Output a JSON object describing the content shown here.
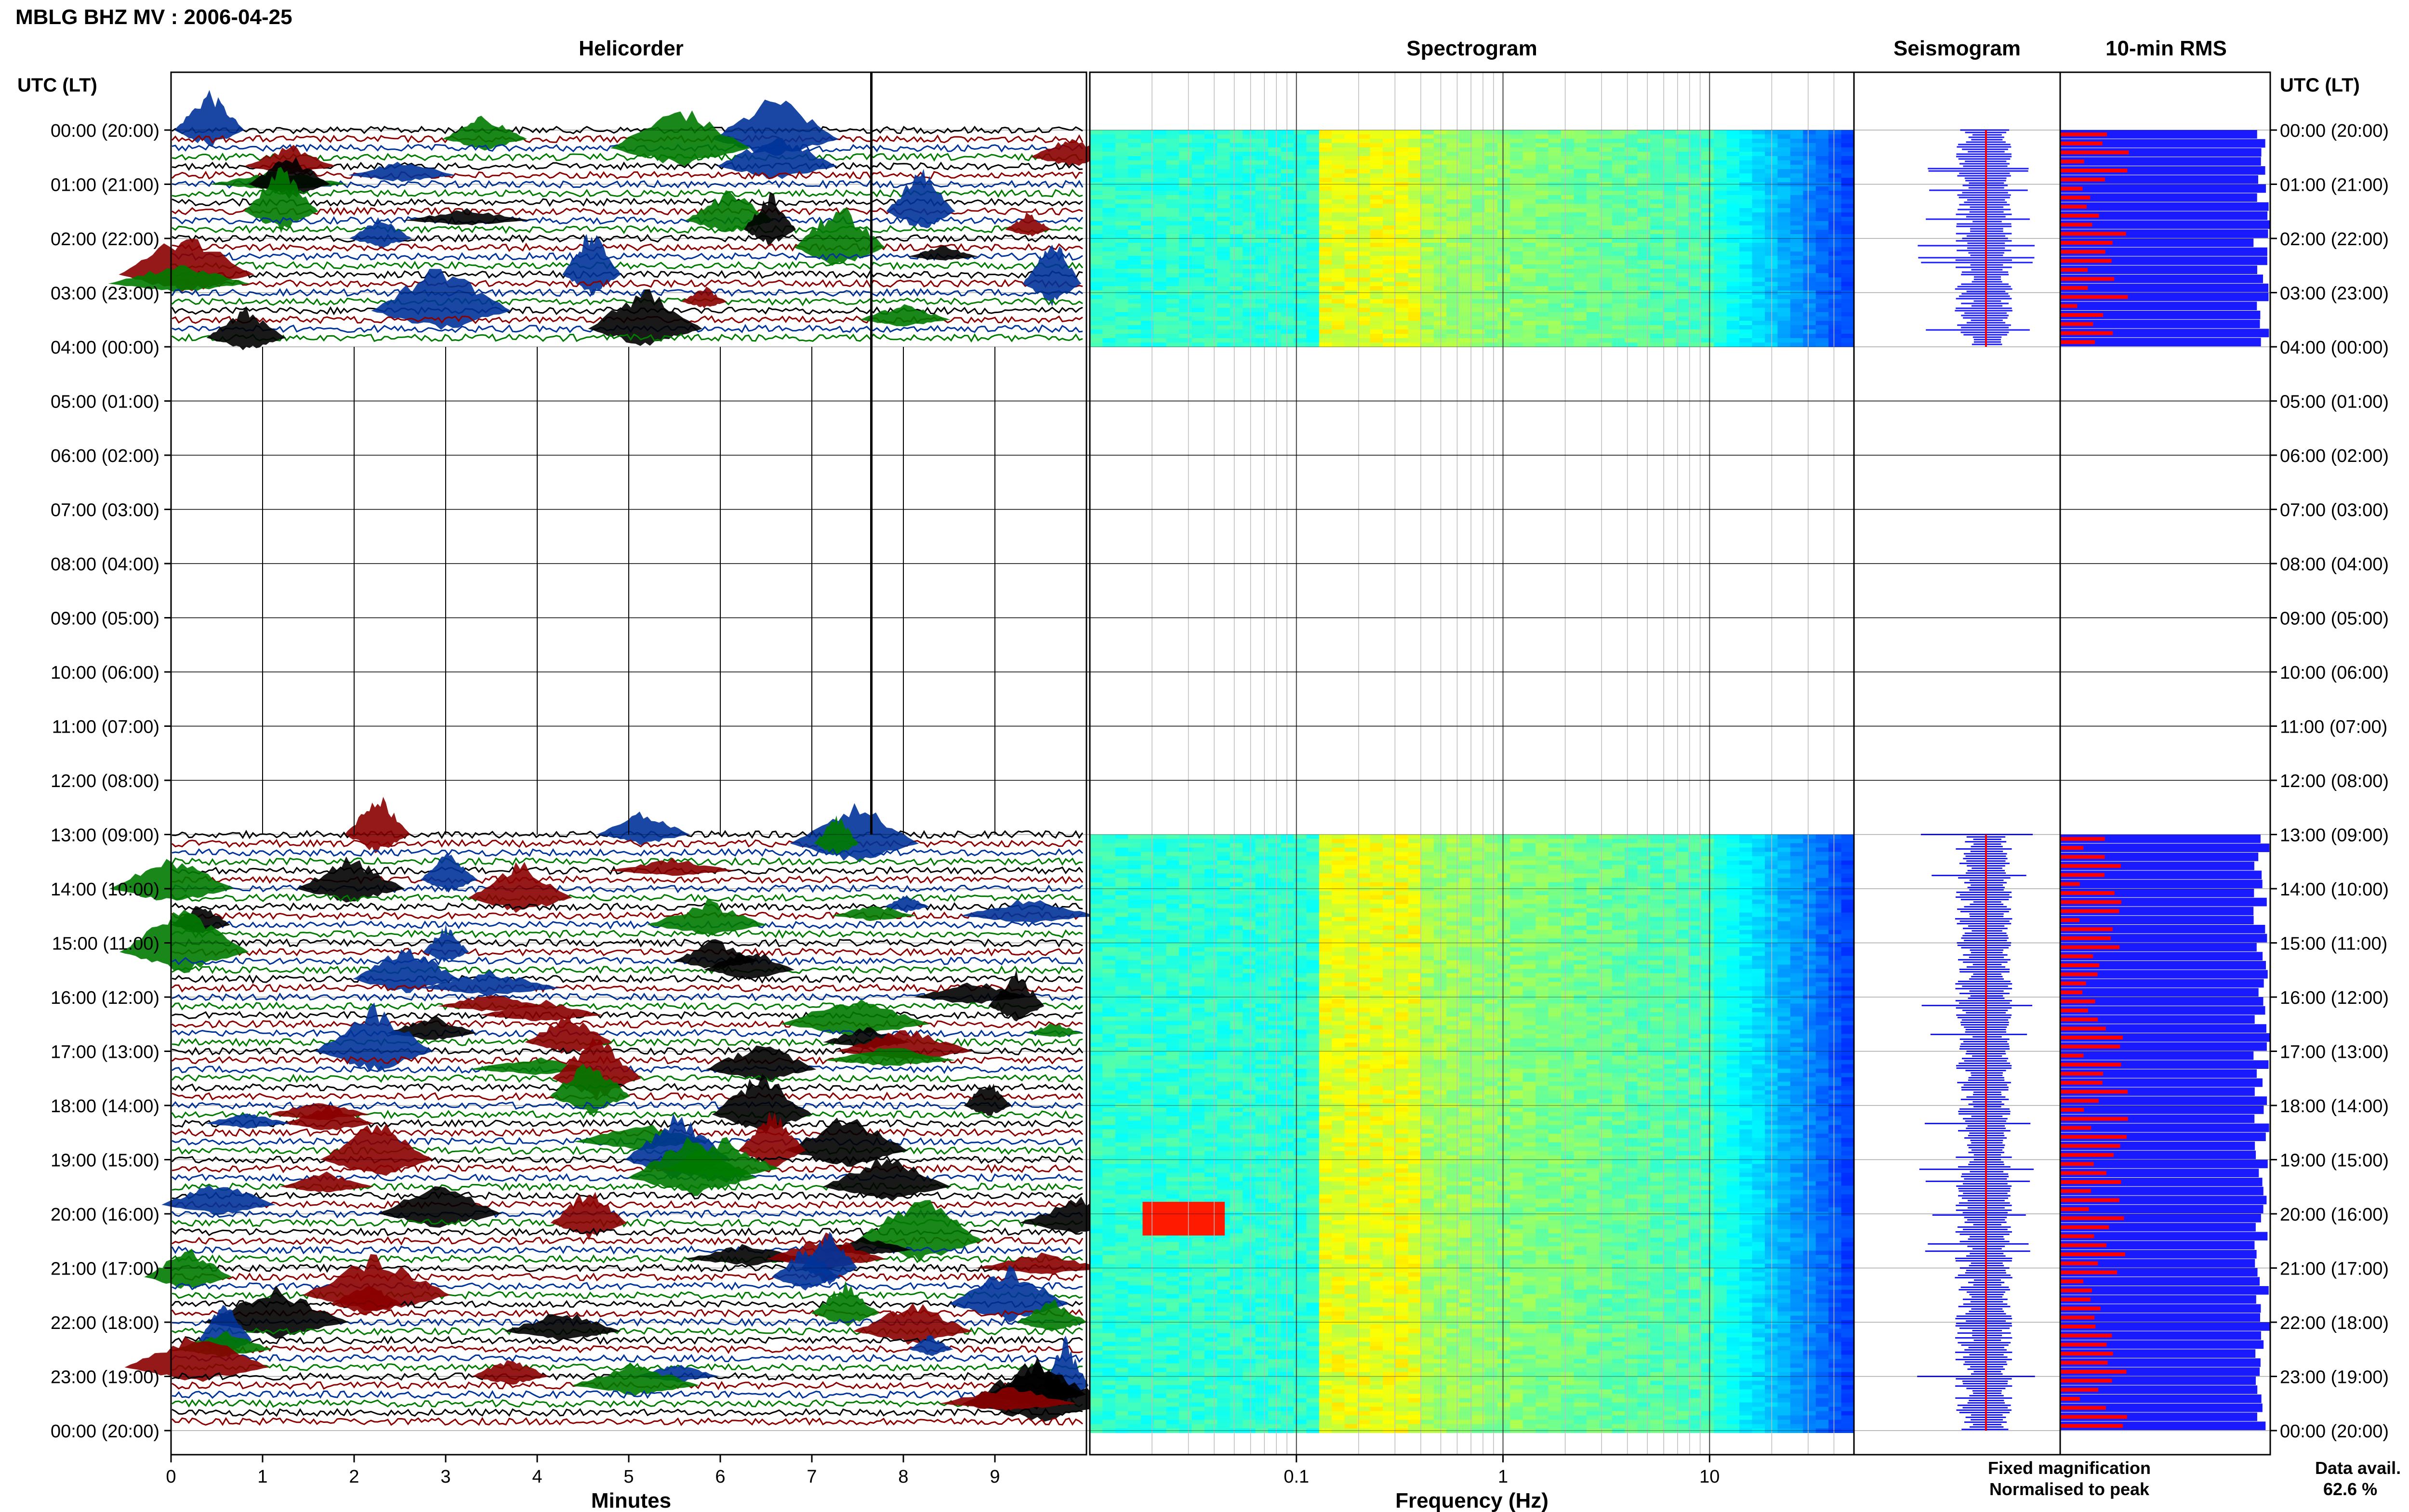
{
  "figure": {
    "title": "MBLG BHZ MV : 2006-04-25",
    "utc_header": "UTC (LT)",
    "data_avail_label": "Data avail.",
    "data_avail_value": "62.6 %",
    "legend_fixed": "Fixed magnification",
    "legend_norm": "Normalised to peak"
  },
  "colors": {
    "trace_cycle": [
      "#000000",
      "#8b0000",
      "#003399",
      "#007a00"
    ],
    "fixed_blue": "#1a1aff",
    "peak_red": "#ff0000"
  },
  "time_labels": [
    "00:00 (20:00)",
    "01:00 (21:00)",
    "02:00 (22:00)",
    "03:00 (23:00)",
    "04:00 (00:00)",
    "05:00 (01:00)",
    "06:00 (02:00)",
    "07:00 (03:00)",
    "08:00 (04:00)",
    "09:00 (05:00)",
    "10:00 (06:00)",
    "11:00 (07:00)",
    "12:00 (08:00)",
    "13:00 (09:00)",
    "14:00 (10:00)",
    "15:00 (11:00)",
    "16:00 (12:00)",
    "17:00 (13:00)",
    "18:00 (14:00)",
    "19:00 (15:00)",
    "20:00 (16:00)",
    "21:00 (17:00)",
    "22:00 (18:00)",
    "23:00 (19:00)",
    "00:00 (20:00)"
  ],
  "chart_data": [
    {
      "type": "line",
      "title": "Helicorder",
      "xlabel": "Minutes",
      "xlim": [
        0,
        10
      ],
      "x_ticks": [
        "0",
        "1",
        "2",
        "3",
        "4",
        "5",
        "6",
        "7",
        "8",
        "9"
      ],
      "data_periods_utc": [
        [
          0,
          4
        ],
        [
          13,
          24
        ]
      ],
      "no_data_utc": [
        4,
        13
      ]
    },
    {
      "type": "heatmap",
      "title": "Spectrogram",
      "xlabel": "Frequency (Hz)",
      "x_scale": "log",
      "xlim": [
        0.01,
        50
      ],
      "x_ticks": [
        "0.1",
        "1",
        "10"
      ],
      "data_periods_utc": [
        [
          0,
          4
        ],
        [
          13,
          24
        ]
      ],
      "colormap": "jet"
    },
    {
      "type": "line",
      "title": "Seismogram",
      "data_periods_utc": [
        [
          0,
          4
        ],
        [
          13,
          24
        ]
      ],
      "series": [
        {
          "name": "Fixed magnification",
          "color": "#1a1aff"
        },
        {
          "name": "Normalised to peak",
          "color": "#ff0000"
        }
      ]
    },
    {
      "type": "bar",
      "title": "10-min RMS",
      "data_periods_utc": [
        [
          0,
          4
        ],
        [
          13,
          24
        ]
      ],
      "series": [
        {
          "name": "Fixed magnification",
          "color": "#1a1aff"
        },
        {
          "name": "Normalised to peak",
          "color": "#ff0000"
        }
      ]
    }
  ]
}
